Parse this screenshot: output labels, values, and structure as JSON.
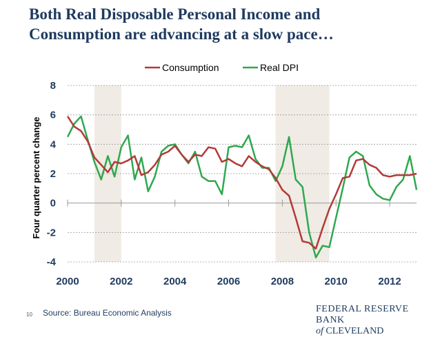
{
  "slide": {
    "title_line1": "Both Real Disposable Personal Income and",
    "title_line2": "Consumption are advancing at a slow pace…",
    "source": "Source: Bureau Economic Analysis",
    "slide_number": "10",
    "logo_line1": "FEDERAL RESERVE BANK",
    "logo_of": "of",
    "logo_city": "CLEVELAND"
  },
  "colors": {
    "consumption": "#b13a38",
    "real_dpi": "#2ea84f",
    "recession": "#f0ebe4",
    "gridline": "#9a9a9a",
    "axis_text": "#1f3a5f"
  },
  "chart_data": {
    "type": "line",
    "title": "",
    "xlabel": "",
    "ylabel": "Four quarter percent change",
    "xlim": [
      2000,
      2013
    ],
    "ylim": [
      -4,
      8
    ],
    "xticks": [
      2000,
      2002,
      2004,
      2006,
      2008,
      2010,
      2012
    ],
    "yticks": [
      -4,
      -2,
      0,
      2,
      4,
      6,
      8
    ],
    "xtick_labels": [
      "2000",
      "2002",
      "2004",
      "2006",
      "2008",
      "2010",
      "2012"
    ],
    "ytick_labels": [
      "-4",
      "-2",
      "0",
      "2",
      "4",
      "6",
      "8"
    ],
    "recessions": [
      [
        2001.0,
        2002.0
      ],
      [
        2007.75,
        2009.75
      ]
    ],
    "legend_position": "top-center",
    "series": [
      {
        "name": "Consumption",
        "x": [
          2000.0,
          2000.25,
          2000.5,
          2000.75,
          2001.0,
          2001.25,
          2001.5,
          2001.75,
          2002.0,
          2002.25,
          2002.5,
          2002.75,
          2003.0,
          2003.25,
          2003.5,
          2003.75,
          2004.0,
          2004.25,
          2004.5,
          2004.75,
          2005.0,
          2005.25,
          2005.5,
          2005.75,
          2006.0,
          2006.25,
          2006.5,
          2006.75,
          2007.0,
          2007.25,
          2007.5,
          2007.75,
          2008.0,
          2008.25,
          2008.5,
          2008.75,
          2009.0,
          2009.25,
          2009.5,
          2009.75,
          2010.0,
          2010.25,
          2010.5,
          2010.75,
          2011.0,
          2011.25,
          2011.5,
          2011.75,
          2012.0,
          2012.25,
          2012.5,
          2012.75,
          2013.0
        ],
        "values": [
          5.9,
          5.2,
          4.9,
          4.2,
          3.1,
          2.6,
          2.1,
          2.8,
          2.7,
          2.9,
          3.2,
          1.9,
          2.1,
          2.6,
          3.3,
          3.5,
          3.9,
          3.3,
          2.8,
          3.3,
          3.2,
          3.8,
          3.7,
          2.8,
          3.0,
          2.7,
          2.5,
          3.2,
          2.8,
          2.5,
          2.3,
          1.7,
          0.9,
          0.5,
          -1.0,
          -2.6,
          -2.7,
          -3.1,
          -1.7,
          -0.4,
          0.6,
          1.7,
          1.8,
          2.9,
          3.0,
          2.6,
          2.4,
          1.9,
          1.8,
          1.9,
          1.9,
          1.9,
          2.0
        ]
      },
      {
        "name": "Real DPI",
        "x": [
          2000.0,
          2000.25,
          2000.5,
          2000.75,
          2001.0,
          2001.25,
          2001.5,
          2001.75,
          2002.0,
          2002.25,
          2002.5,
          2002.75,
          2003.0,
          2003.25,
          2003.5,
          2003.75,
          2004.0,
          2004.25,
          2004.5,
          2004.75,
          2005.0,
          2005.25,
          2005.5,
          2005.75,
          2006.0,
          2006.25,
          2006.5,
          2006.75,
          2007.0,
          2007.25,
          2007.5,
          2007.75,
          2008.0,
          2008.25,
          2008.5,
          2008.75,
          2009.0,
          2009.25,
          2009.5,
          2009.75,
          2010.0,
          2010.25,
          2010.5,
          2010.75,
          2011.0,
          2011.25,
          2011.5,
          2011.75,
          2012.0,
          2012.25,
          2012.5,
          2012.75,
          2013.0
        ],
        "values": [
          4.5,
          5.4,
          5.9,
          4.3,
          2.8,
          1.6,
          3.2,
          1.8,
          3.8,
          4.6,
          1.6,
          3.1,
          0.8,
          1.8,
          3.5,
          3.9,
          4.0,
          3.3,
          2.7,
          3.5,
          1.8,
          1.5,
          1.5,
          0.6,
          3.8,
          3.9,
          3.8,
          4.6,
          3.0,
          2.4,
          2.4,
          1.5,
          2.5,
          4.5,
          1.6,
          1.1,
          -2.0,
          -3.7,
          -2.9,
          -3.0,
          -1.0,
          1.0,
          3.1,
          3.5,
          3.2,
          1.2,
          0.6,
          0.3,
          0.2,
          1.1,
          1.6,
          3.2,
          0.9
        ]
      }
    ]
  }
}
